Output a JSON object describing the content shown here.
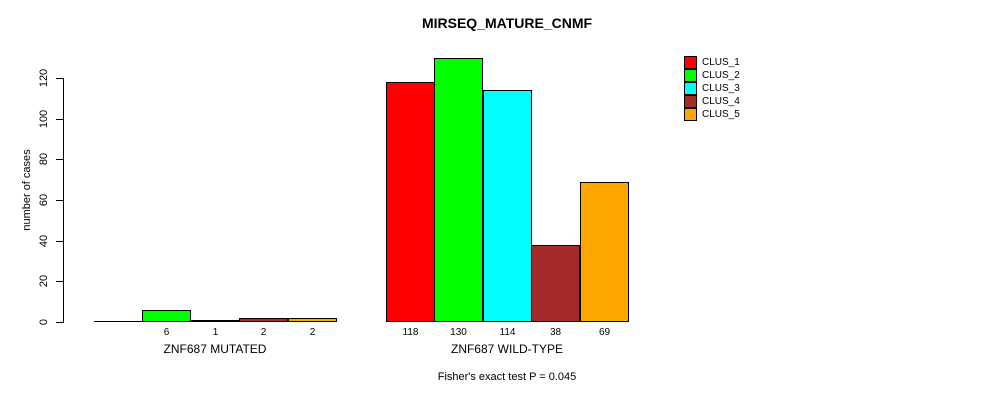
{
  "chart_data": {
    "type": "bar",
    "title": "MIRSEQ_MATURE_CNMF",
    "ylabel": "number of cases",
    "categories": [
      "ZNF687 MUTATED",
      "ZNF687 WILD-TYPE"
    ],
    "series": [
      {
        "name": "CLUS_1",
        "color": "#FF0000",
        "values": [
          0,
          118
        ]
      },
      {
        "name": "CLUS_2",
        "color": "#00FF00",
        "values": [
          6,
          130
        ]
      },
      {
        "name": "CLUS_3",
        "color": "#00FFFF",
        "values": [
          1,
          114
        ]
      },
      {
        "name": "CLUS_4",
        "color": "#A52A2A",
        "values": [
          2,
          38
        ]
      },
      {
        "name": "CLUS_5",
        "color": "#FFA500",
        "values": [
          2,
          69
        ]
      }
    ],
    "bar_value_labels": [
      [
        "",
        "6",
        "1",
        "2",
        "2"
      ],
      [
        "118",
        "130",
        "114",
        "38",
        "69"
      ]
    ],
    "yticks": [
      0,
      20,
      40,
      60,
      80,
      100,
      120
    ],
    "ylim": [
      0,
      130
    ],
    "grid": false,
    "legend_position": "right",
    "annotation": "Fisher's exact test P = 0.045"
  }
}
